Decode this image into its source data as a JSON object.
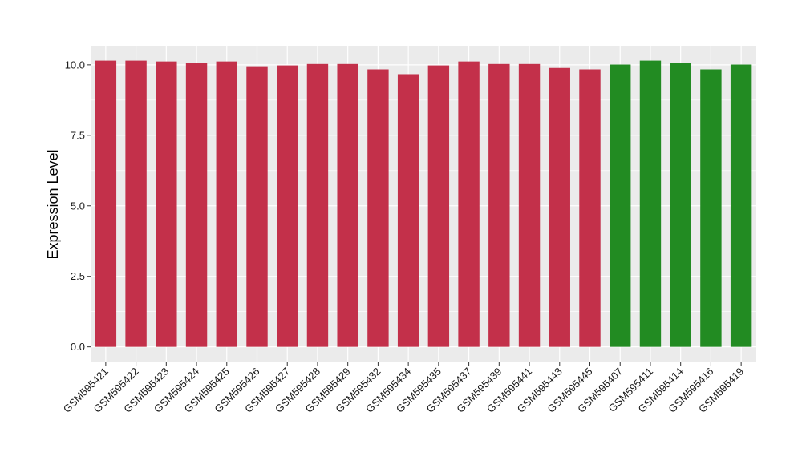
{
  "chart_data": {
    "type": "bar",
    "title": "",
    "xlabel": "",
    "ylabel": "Expression Level",
    "ylim": [
      -0.55,
      10.65
    ],
    "yticks": [
      "0.0",
      "2.5",
      "5.0",
      "7.5",
      "10.0"
    ],
    "ytick_values": [
      0,
      2.5,
      5,
      7.5,
      10
    ],
    "grid": true,
    "legend": "none",
    "categories": [
      "GSM595421",
      "GSM595422",
      "GSM595423",
      "GSM595424",
      "GSM595425",
      "GSM595426",
      "GSM595427",
      "GSM595428",
      "GSM595429",
      "GSM595432",
      "GSM595434",
      "GSM595435",
      "GSM595437",
      "GSM595439",
      "GSM595441",
      "GSM595443",
      "GSM595445",
      "GSM595407",
      "GSM595411",
      "GSM595414",
      "GSM595416",
      "GSM595419"
    ],
    "values": [
      10.15,
      10.15,
      10.12,
      10.06,
      10.12,
      9.95,
      9.98,
      10.03,
      10.03,
      9.84,
      9.67,
      9.98,
      10.12,
      10.03,
      10.03,
      9.89,
      9.84,
      10.01,
      10.15,
      10.06,
      9.84,
      10.01
    ],
    "groups": [
      "a",
      "a",
      "a",
      "a",
      "a",
      "a",
      "a",
      "a",
      "a",
      "a",
      "a",
      "a",
      "a",
      "a",
      "a",
      "a",
      "a",
      "b",
      "b",
      "b",
      "b",
      "b"
    ],
    "group_colors": {
      "a": "#c3304a",
      "b": "#228b22"
    },
    "panel_background": "#ebebeb",
    "grid_color": "#ffffff"
  }
}
